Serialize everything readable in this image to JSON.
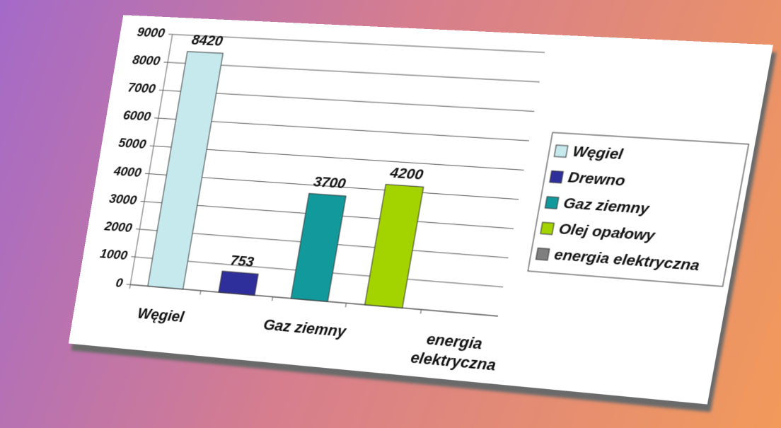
{
  "chart_data": {
    "type": "bar",
    "categories": [
      "Węgiel",
      null,
      "Gaz ziemny",
      null,
      "energia elektryczna"
    ],
    "values": [
      8420,
      753,
      3700,
      4200,
      null
    ],
    "colors": [
      "#c6e9ee",
      "#2f2f9c",
      "#12999b",
      "#a3d400",
      "#7f7f7f"
    ],
    "legend": [
      "Węgiel",
      "Drewno",
      "Gaz ziemny",
      "Olej opałowy",
      "energia elektryczna"
    ],
    "ylim": [
      0,
      9000
    ],
    "yticks": [
      0,
      1000,
      2000,
      3000,
      4000,
      5000,
      6000,
      7000,
      8000,
      9000
    ],
    "grid": true
  }
}
